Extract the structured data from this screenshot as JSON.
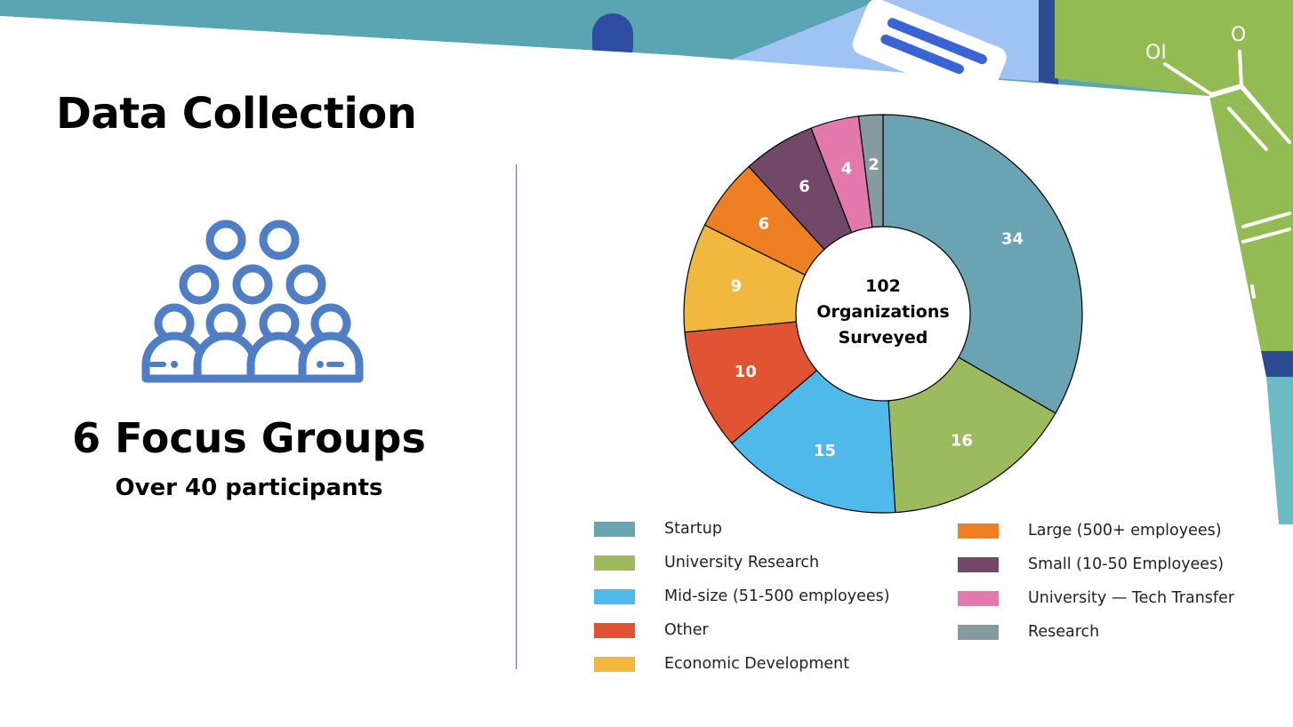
{
  "slide": {
    "title": "Data Collection",
    "focus_groups": "6 Focus Groups",
    "participants": "Over 40 participants"
  },
  "icons": {
    "group": "group-people-icon"
  },
  "chart_data": {
    "type": "pie",
    "variant": "donut",
    "center_label": [
      "102",
      "Organizations",
      "Surveyed"
    ],
    "legend_placement": "bottom",
    "categories": [
      "Startup",
      "University Research",
      "Mid-size (51-500 employees)",
      "Other",
      "Economic Development",
      "Large (500+ employees)",
      "Small (10-50 Employees)",
      "University — Tech Transfer",
      "Research"
    ],
    "values": [
      34,
      16,
      15,
      10,
      9,
      6,
      6,
      4,
      2
    ],
    "colors": [
      "#6aa3b2",
      "#9bbb5e",
      "#4fb9ea",
      "#e05433",
      "#f1b840",
      "#ee7f22",
      "#714868",
      "#e378ad",
      "#869aa1"
    ]
  }
}
